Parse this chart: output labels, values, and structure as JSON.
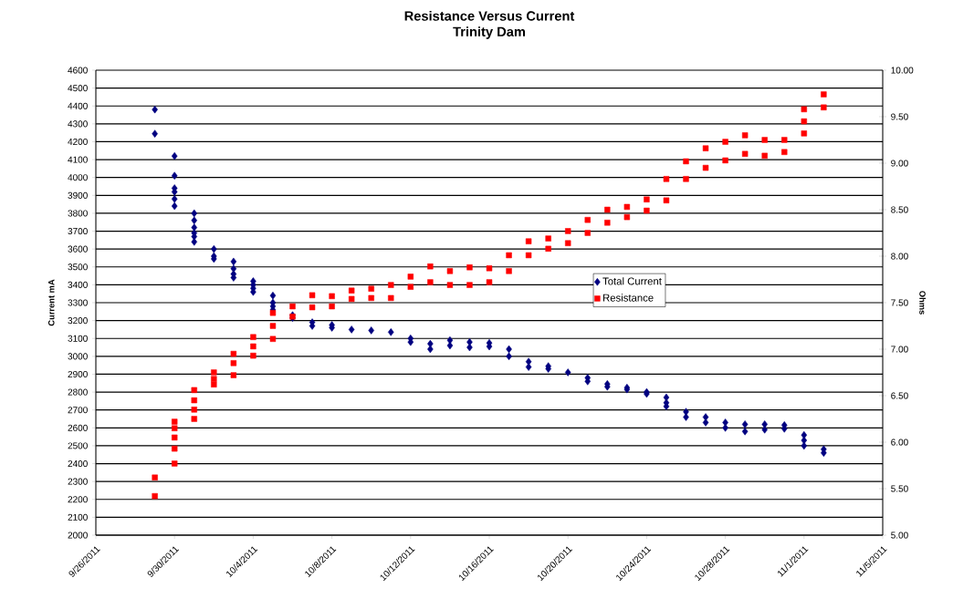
{
  "chart_data": {
    "type": "scatter",
    "title": "Resistance Versus Current",
    "subtitle": "Trinity Dam",
    "ylabel": "Current mA",
    "y2label": "Ohms",
    "xlim": [
      "2011-09-26",
      "2011-11-05"
    ],
    "xticks": [
      {
        "value": "2011-09-26",
        "label": "9/26/2011"
      },
      {
        "value": "2011-09-30",
        "label": "9/30/2011"
      },
      {
        "value": "2011-10-04",
        "label": "10/4/2011"
      },
      {
        "value": "2011-10-08",
        "label": "10/8/2011"
      },
      {
        "value": "2011-10-12",
        "label": "10/12/2011"
      },
      {
        "value": "2011-10-16",
        "label": "10/16/2011"
      },
      {
        "value": "2011-10-20",
        "label": "10/20/2011"
      },
      {
        "value": "2011-10-24",
        "label": "10/24/2011"
      },
      {
        "value": "2011-10-28",
        "label": "10/28/2011"
      },
      {
        "value": "2011-11-01",
        "label": "11/1/2011"
      },
      {
        "value": "2011-11-05",
        "label": "11/5/2011"
      }
    ],
    "ylim": [
      2000,
      4600
    ],
    "yticks": [
      2000,
      2100,
      2200,
      2300,
      2400,
      2500,
      2600,
      2700,
      2800,
      2900,
      3000,
      3100,
      3200,
      3300,
      3400,
      3500,
      3600,
      3700,
      3800,
      3900,
      4000,
      4100,
      4200,
      4300,
      4400,
      4500,
      4600
    ],
    "y2lim": [
      5,
      10
    ],
    "y2ticks": [
      {
        "value": 5,
        "label": "5.00"
      },
      {
        "value": 5.5,
        "label": "5.50"
      },
      {
        "value": 6,
        "label": "6.00"
      },
      {
        "value": 6.5,
        "label": "6.50"
      },
      {
        "value": 7,
        "label": "7.00"
      },
      {
        "value": 7.5,
        "label": "7.50"
      },
      {
        "value": 8,
        "label": "8.00"
      },
      {
        "value": 8.5,
        "label": "8.50"
      },
      {
        "value": 9,
        "label": "9.00"
      },
      {
        "value": 9.5,
        "label": "9.50"
      },
      {
        "value": 10,
        "label": "10.00"
      }
    ],
    "grid": "y",
    "legend": "right",
    "series": [
      {
        "name": "Total Current",
        "color": "#000080",
        "marker": "diamond",
        "x": [
          "2011-09-29",
          "2011-09-29",
          "2011-09-30",
          "2011-09-30",
          "2011-09-30",
          "2011-09-30",
          "2011-09-30",
          "2011-09-30",
          "2011-10-01",
          "2011-10-01",
          "2011-10-01",
          "2011-10-01",
          "2011-10-01",
          "2011-10-01",
          "2011-10-02",
          "2011-10-02",
          "2011-10-02",
          "2011-10-03",
          "2011-10-03",
          "2011-10-03",
          "2011-10-03",
          "2011-10-04",
          "2011-10-04",
          "2011-10-04",
          "2011-10-04",
          "2011-10-05",
          "2011-10-05",
          "2011-10-05",
          "2011-10-05",
          "2011-10-06",
          "2011-10-06",
          "2011-10-07",
          "2011-10-07",
          "2011-10-08",
          "2011-10-08",
          "2011-10-09",
          "2011-10-10",
          "2011-10-11",
          "2011-10-12",
          "2011-10-12",
          "2011-10-13",
          "2011-10-13",
          "2011-10-14",
          "2011-10-14",
          "2011-10-15",
          "2011-10-15",
          "2011-10-16",
          "2011-10-16",
          "2011-10-17",
          "2011-10-17",
          "2011-10-18",
          "2011-10-18",
          "2011-10-19",
          "2011-10-19",
          "2011-10-20",
          "2011-10-21",
          "2011-10-21",
          "2011-10-22",
          "2011-10-22",
          "2011-10-23",
          "2011-10-23",
          "2011-10-24",
          "2011-10-24",
          "2011-10-25",
          "2011-10-25",
          "2011-10-25",
          "2011-10-26",
          "2011-10-26",
          "2011-10-27",
          "2011-10-27",
          "2011-10-28",
          "2011-10-28",
          "2011-10-29",
          "2011-10-29",
          "2011-10-30",
          "2011-10-30",
          "2011-10-31",
          "2011-10-31",
          "2011-11-01",
          "2011-11-01",
          "2011-11-01",
          "2011-11-02",
          "2011-11-02"
        ],
        "values": [
          4380,
          4245,
          4120,
          4010,
          3940,
          3920,
          3880,
          3840,
          3800,
          3760,
          3720,
          3690,
          3670,
          3640,
          3600,
          3560,
          3545,
          3530,
          3490,
          3460,
          3440,
          3420,
          3400,
          3380,
          3360,
          3340,
          3300,
          3280,
          3260,
          3230,
          3215,
          3190,
          3170,
          3175,
          3160,
          3150,
          3145,
          3135,
          3100,
          3080,
          3070,
          3040,
          3090,
          3060,
          3080,
          3050,
          3075,
          3055,
          3040,
          3000,
          2970,
          2940,
          2945,
          2930,
          2910,
          2880,
          2860,
          2845,
          2830,
          2825,
          2815,
          2800,
          2790,
          2770,
          2740,
          2720,
          2690,
          2660,
          2660,
          2630,
          2630,
          2600,
          2620,
          2580,
          2620,
          2590,
          2615,
          2595,
          2560,
          2530,
          2500,
          2480,
          2460
        ]
      },
      {
        "name": "Resistance",
        "color": "#ff0000",
        "marker": "square",
        "axis": "y2",
        "x": [
          "2011-09-29",
          "2011-09-29",
          "2011-09-30",
          "2011-09-30",
          "2011-09-30",
          "2011-09-30",
          "2011-09-30",
          "2011-10-01",
          "2011-10-01",
          "2011-10-01",
          "2011-10-01",
          "2011-10-02",
          "2011-10-02",
          "2011-10-02",
          "2011-10-03",
          "2011-10-03",
          "2011-10-03",
          "2011-10-04",
          "2011-10-04",
          "2011-10-04",
          "2011-10-05",
          "2011-10-05",
          "2011-10-05",
          "2011-10-06",
          "2011-10-06",
          "2011-10-07",
          "2011-10-07",
          "2011-10-08",
          "2011-10-08",
          "2011-10-09",
          "2011-10-09",
          "2011-10-10",
          "2011-10-10",
          "2011-10-11",
          "2011-10-11",
          "2011-10-12",
          "2011-10-12",
          "2011-10-13",
          "2011-10-13",
          "2011-10-14",
          "2011-10-14",
          "2011-10-15",
          "2011-10-15",
          "2011-10-16",
          "2011-10-16",
          "2011-10-17",
          "2011-10-17",
          "2011-10-18",
          "2011-10-18",
          "2011-10-19",
          "2011-10-19",
          "2011-10-20",
          "2011-10-20",
          "2011-10-21",
          "2011-10-21",
          "2011-10-22",
          "2011-10-22",
          "2011-10-23",
          "2011-10-23",
          "2011-10-24",
          "2011-10-24",
          "2011-10-25",
          "2011-10-25",
          "2011-10-26",
          "2011-10-26",
          "2011-10-27",
          "2011-10-27",
          "2011-10-28",
          "2011-10-28",
          "2011-10-29",
          "2011-10-29",
          "2011-10-30",
          "2011-10-30",
          "2011-10-31",
          "2011-10-31",
          "2011-11-01",
          "2011-11-01",
          "2011-11-01",
          "2011-11-02",
          "2011-11-02"
        ],
        "values": [
          5.62,
          5.42,
          6.22,
          6.15,
          6.05,
          5.93,
          5.77,
          6.56,
          6.45,
          6.35,
          6.25,
          6.75,
          6.68,
          6.62,
          6.95,
          6.85,
          6.72,
          7.13,
          7.03,
          6.93,
          7.39,
          7.25,
          7.11,
          7.46,
          7.35,
          7.58,
          7.45,
          7.57,
          7.46,
          7.63,
          7.54,
          7.65,
          7.55,
          7.69,
          7.55,
          7.78,
          7.67,
          7.89,
          7.72,
          7.84,
          7.69,
          7.88,
          7.69,
          7.87,
          7.72,
          8.01,
          7.84,
          8.16,
          8.01,
          8.19,
          8.08,
          8.27,
          8.14,
          8.39,
          8.25,
          8.5,
          8.36,
          8.53,
          8.42,
          8.61,
          8.49,
          8.83,
          8.6,
          9.02,
          8.83,
          9.16,
          8.95,
          9.23,
          9.03,
          9.3,
          9.1,
          9.25,
          9.08,
          9.25,
          9.12,
          9.58,
          9.45,
          9.32,
          9.74,
          9.6
        ]
      }
    ]
  }
}
